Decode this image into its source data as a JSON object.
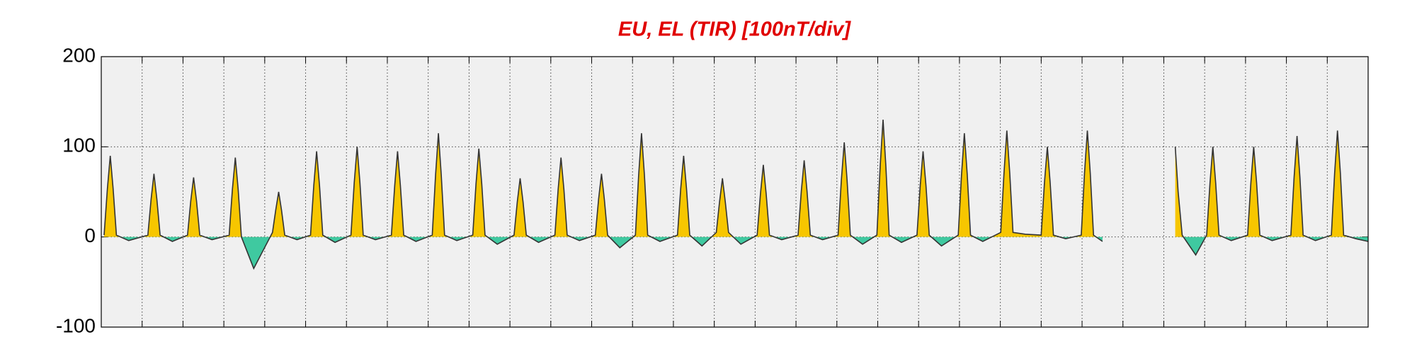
{
  "chart_data": {
    "type": "area",
    "title": "EU, EL (TIR)  [100nT/div]",
    "xlim": [
      0,
      31
    ],
    "xticks": [
      0,
      1,
      2,
      3,
      4,
      5,
      6,
      7,
      8,
      9,
      10,
      11,
      12,
      13,
      14,
      15,
      16,
      17,
      18,
      19,
      20,
      21,
      22,
      23,
      24,
      25,
      26,
      27,
      28,
      29,
      30,
      31
    ],
    "ylim": [
      -100,
      200
    ],
    "yticks": [
      -100,
      0,
      100,
      200
    ],
    "grid": true,
    "positive_color": "#f7c600",
    "negative_color": "#3fc9a0",
    "line_color": "#333333",
    "x": [
      0.07,
      0.15,
      0.22,
      0.29,
      0.37,
      0.67,
      1.14,
      1.22,
      1.29,
      1.36,
      1.44,
      1.74,
      2.11,
      2.19,
      2.26,
      2.33,
      2.41,
      2.71,
      3.13,
      3.21,
      3.28,
      3.35,
      3.43,
      3.73,
      4.19,
      4.27,
      4.34,
      4.41,
      4.49,
      4.79,
      5.12,
      5.2,
      5.27,
      5.34,
      5.42,
      5.72,
      6.11,
      6.19,
      6.26,
      6.33,
      6.41,
      6.71,
      7.1,
      7.18,
      7.25,
      7.32,
      7.4,
      7.7,
      8.1,
      8.18,
      8.25,
      8.32,
      8.4,
      8.7,
      9.09,
      9.17,
      9.24,
      9.31,
      9.39,
      9.69,
      10.1,
      10.18,
      10.25,
      10.32,
      10.4,
      10.7,
      11.1,
      11.18,
      11.25,
      11.32,
      11.4,
      11.7,
      12.09,
      12.17,
      12.24,
      12.31,
      12.39,
      12.69,
      13.07,
      13.15,
      13.22,
      13.29,
      13.37,
      13.67,
      14.1,
      14.18,
      14.25,
      14.32,
      14.4,
      14.7,
      15.05,
      15.13,
      15.2,
      15.27,
      15.35,
      15.65,
      16.05,
      16.13,
      16.2,
      16.27,
      16.35,
      16.65,
      17.05,
      17.13,
      17.2,
      17.27,
      17.35,
      17.65,
      18.03,
      18.11,
      18.18,
      18.25,
      18.33,
      18.63,
      18.98,
      19.06,
      19.13,
      19.2,
      19.28,
      19.58,
      19.96,
      20.04,
      20.11,
      20.18,
      20.26,
      20.56,
      20.97,
      21.05,
      21.12,
      21.19,
      21.27,
      21.57,
      22.01,
      22.09,
      22.16,
      22.23,
      22.31,
      22.61,
      23.0,
      23.08,
      23.15,
      23.22,
      23.3,
      23.6,
      23.98,
      24.06,
      24.13,
      24.2,
      24.28,
      24.5,
      25.0,
      26.28,
      26.35,
      26.45,
      26.78,
      27.05,
      27.13,
      27.2,
      27.27,
      27.35,
      27.65,
      28.05,
      28.13,
      28.2,
      28.27,
      28.35,
      28.65,
      29.11,
      29.19,
      29.26,
      29.33,
      29.41,
      29.71,
      30.1,
      30.18,
      30.25,
      30.32,
      30.4,
      30.7,
      31.0
    ],
    "values": [
      2,
      54,
      90,
      54,
      2,
      -4,
      2,
      42,
      70,
      42,
      2,
      -5,
      2,
      40,
      66,
      40,
      2,
      -3,
      2,
      53,
      88,
      53,
      0,
      -35,
      5,
      30,
      50,
      30,
      2,
      -3,
      2,
      57,
      95,
      57,
      2,
      -6,
      2,
      60,
      100,
      60,
      2,
      -3,
      2,
      57,
      95,
      57,
      2,
      -5,
      2,
      69,
      115,
      69,
      2,
      -4,
      2,
      59,
      98,
      59,
      2,
      -8,
      2,
      39,
      65,
      39,
      2,
      -6,
      2,
      53,
      88,
      53,
      2,
      -4,
      2,
      42,
      70,
      42,
      2,
      -12,
      2,
      69,
      115,
      69,
      2,
      -5,
      2,
      54,
      90,
      54,
      2,
      -10,
      5,
      39,
      65,
      39,
      5,
      -8,
      2,
      48,
      80,
      48,
      2,
      -3,
      2,
      51,
      85,
      51,
      2,
      -3,
      2,
      63,
      105,
      63,
      2,
      -8,
      2,
      78,
      130,
      78,
      2,
      -6,
      2,
      57,
      95,
      57,
      2,
      -10,
      2,
      69,
      115,
      69,
      2,
      -5,
      5,
      71,
      118,
      71,
      5,
      3,
      2,
      60,
      100,
      60,
      2,
      -2,
      2,
      71,
      118,
      71,
      2,
      -5,
      null,
      100,
      50,
      2,
      -20,
      2,
      60,
      100,
      60,
      2,
      -4,
      2,
      60,
      100,
      60,
      2,
      -4,
      2,
      67,
      112,
      67,
      2,
      -4,
      2,
      71,
      118,
      71,
      2,
      -2,
      -5
    ]
  }
}
